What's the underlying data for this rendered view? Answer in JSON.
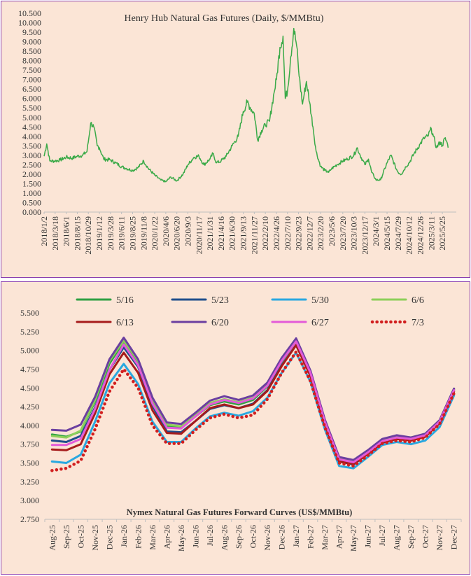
{
  "chart_data": [
    {
      "type": "line",
      "title": "Henry Hub Natural Gas Futures (Daily, $/MMBtu)",
      "xlabel": "",
      "ylabel": "",
      "ylim": [
        0,
        10.5
      ],
      "y_ticks": [
        "0.000",
        "0.500",
        "1.000",
        "1.500",
        "2.000",
        "2.500",
        "3.000",
        "3.500",
        "4.000",
        "4.500",
        "5.000",
        "5.500",
        "6.000",
        "6.500",
        "7.000",
        "7.500",
        "8.000",
        "8.500",
        "9.000",
        "9.500",
        "10.000",
        "10.500"
      ],
      "x_tick_labels": [
        "2018/1/2",
        "2018/3/18",
        "2018/6/1",
        "2018/8/15",
        "2018/10/29",
        "2019/1/12",
        "2019/3/28",
        "2019/6/11",
        "2019/8/25",
        "2019/11/8",
        "2020/1/22",
        "2020/4/6",
        "2020/6/20",
        "2020/9/3",
        "2020/11/17",
        "2021/1/31",
        "2021/4/16",
        "2021/6/30",
        "2021/9/13",
        "2021/11/27",
        "2022/2/10",
        "2022/4/26",
        "2022/7/10",
        "2022/9/23",
        "2022/12/7",
        "2023/2/20",
        "2023/5/6",
        "2023/7/20",
        "2023/10/3",
        "2023/12/17",
        "2024/3/1",
        "2024/5/15",
        "2024/7/29",
        "2024/10/12",
        "2024/12/26",
        "2025/3/11",
        "2025/5/25"
      ],
      "series": [
        {
          "color": "#3aaa48",
          "points": [
            [
              "2018/1/2",
              2.95
            ],
            [
              "2018/1/20",
              3.6
            ],
            [
              "2018/2/10",
              2.7
            ],
            [
              "2018/3/18",
              2.7
            ],
            [
              "2018/4/20",
              2.75
            ],
            [
              "2018/6/1",
              2.9
            ],
            [
              "2018/7/15",
              2.85
            ],
            [
              "2018/8/15",
              2.95
            ],
            [
              "2018/9/20",
              3.0
            ],
            [
              "2018/10/20",
              3.2
            ],
            [
              "2018/11/14",
              4.7
            ],
            [
              "2018/12/5",
              4.5
            ],
            [
              "2018/12/28",
              3.5
            ],
            [
              "2019/1/12",
              3.4
            ],
            [
              "2019/2/10",
              2.8
            ],
            [
              "2019/3/28",
              2.75
            ],
            [
              "2019/5/1",
              2.6
            ],
            [
              "2019/6/11",
              2.4
            ],
            [
              "2019/7/15",
              2.3
            ],
            [
              "2019/8/25",
              2.2
            ],
            [
              "2019/10/1",
              2.35
            ],
            [
              "2019/11/8",
              2.7
            ],
            [
              "2019/12/10",
              2.3
            ],
            [
              "2020/1/22",
              1.95
            ],
            [
              "2020/3/1",
              1.7
            ],
            [
              "2020/4/6",
              1.6
            ],
            [
              "2020/5/10",
              1.85
            ],
            [
              "2020/6/20",
              1.65
            ],
            [
              "2020/8/1",
              2.0
            ],
            [
              "2020/9/3",
              2.5
            ],
            [
              "2020/10/15",
              2.9
            ],
            [
              "2020/11/17",
              2.95
            ],
            [
              "2020/12/20",
              2.5
            ],
            [
              "2021/1/31",
              2.8
            ],
            [
              "2021/2/20",
              3.1
            ],
            [
              "2021/3/15",
              2.6
            ],
            [
              "2021/4/16",
              2.7
            ],
            [
              "2021/5/20",
              2.95
            ],
            [
              "2021/6/30",
              3.5
            ],
            [
              "2021/8/10",
              4.0
            ],
            [
              "2021/9/13",
              5.3
            ],
            [
              "2021/10/10",
              5.8
            ],
            [
              "2021/11/1",
              5.5
            ],
            [
              "2021/11/27",
              5.2
            ],
            [
              "2021/12/20",
              3.8
            ],
            [
              "2022/1/15",
              4.3
            ],
            [
              "2022/2/10",
              4.6
            ],
            [
              "2022/3/10",
              4.8
            ],
            [
              "2022/4/10",
              6.3
            ],
            [
              "2022/4/26",
              7.0
            ],
            [
              "2022/5/20",
              8.7
            ],
            [
              "2022/6/10",
              9.3
            ],
            [
              "2022/6/25",
              6.0
            ],
            [
              "2022/7/10",
              6.4
            ],
            [
              "2022/8/1",
              8.2
            ],
            [
              "2022/8/22",
              9.7
            ],
            [
              "2022/9/10",
              8.8
            ],
            [
              "2022/9/23",
              7.5
            ],
            [
              "2022/10/20",
              5.7
            ],
            [
              "2022/11/15",
              6.9
            ],
            [
              "2022/12/7",
              5.8
            ],
            [
              "2022/12/30",
              4.5
            ],
            [
              "2023/1/20",
              3.2
            ],
            [
              "2023/2/20",
              2.4
            ],
            [
              "2023/3/20",
              2.2
            ],
            [
              "2023/4/15",
              2.1
            ],
            [
              "2023/5/6",
              2.3
            ],
            [
              "2023/6/10",
              2.5
            ],
            [
              "2023/7/20",
              2.7
            ],
            [
              "2023/8/20",
              2.8
            ],
            [
              "2023/10/3",
              3.0
            ],
            [
              "2023/10/25",
              3.4
            ],
            [
              "2023/11/15",
              3.0
            ],
            [
              "2023/12/17",
              2.5
            ],
            [
              "2024/1/10",
              2.8
            ],
            [
              "2024/2/1",
              2.1
            ],
            [
              "2024/3/1",
              1.7
            ],
            [
              "2024/4/1",
              1.7
            ],
            [
              "2024/5/15",
              2.6
            ],
            [
              "2024/6/10",
              3.0
            ],
            [
              "2024/7/10",
              2.4
            ],
            [
              "2024/7/29",
              2.1
            ],
            [
              "2024/8/20",
              2.0
            ],
            [
              "2024/9/20",
              2.4
            ],
            [
              "2024/10/12",
              2.6
            ],
            [
              "2024/11/15",
              3.1
            ],
            [
              "2024/12/26",
              3.6
            ],
            [
              "2025/1/20",
              3.9
            ],
            [
              "2025/2/15",
              4.0
            ],
            [
              "2025/3/11",
              4.4
            ],
            [
              "2025/3/25",
              4.0
            ],
            [
              "2025/4/15",
              3.4
            ],
            [
              "2025/5/10",
              3.7
            ],
            [
              "2025/5/25",
              3.5
            ],
            [
              "2025/6/10",
              3.9
            ],
            [
              "2025/6/25",
              3.7
            ],
            [
              "2025/7/3",
              3.4
            ]
          ]
        }
      ]
    },
    {
      "type": "line",
      "title": "Nymex  Natural  Gas Futures Forward  Curves (US$/MMBtu)",
      "xlabel": "",
      "ylabel": "",
      "ylim": [
        2.75,
        5.5
      ],
      "y_ticks": [
        "2.750",
        "3.000",
        "3.250",
        "3.500",
        "3.750",
        "4.000",
        "4.250",
        "4.500",
        "4.750",
        "5.000",
        "5.250",
        "5.500"
      ],
      "categories": [
        "Aug-25",
        "Sep-25",
        "Oct-25",
        "Nov-25",
        "Dec-25",
        "Jan-26",
        "Feb-26",
        "Mar-26",
        "Apr-26",
        "May-26",
        "Jun-26",
        "Jul-26",
        "Aug-26",
        "Sep-26",
        "Oct-26",
        "Nov-26",
        "Dec-26",
        "Jan-27",
        "Feb-27",
        "Mar-27",
        "Apr-27",
        "May-27",
        "Jun-27",
        "Jul-27",
        "Aug-27",
        "Sep-27",
        "Oct-27",
        "Nov-27",
        "Dec-27"
      ],
      "legend_position": "top",
      "series": [
        {
          "name": "5/16",
          "color": "#2ea043",
          "dash": false,
          "values": [
            3.88,
            3.85,
            3.92,
            4.32,
            4.82,
            5.12,
            4.85,
            4.33,
            3.99,
            3.97,
            4.12,
            4.27,
            4.32,
            4.28,
            4.34,
            4.52,
            4.85,
            5.12,
            4.7,
            4.05,
            3.56,
            3.52,
            3.65,
            3.8,
            3.85,
            3.82,
            3.88,
            4.06,
            4.48
          ]
        },
        {
          "name": "5/23",
          "color": "#1f4e8c",
          "dash": false,
          "values": [
            3.8,
            3.78,
            3.86,
            4.24,
            4.74,
            5.04,
            4.78,
            4.26,
            3.92,
            3.91,
            4.06,
            4.22,
            4.27,
            4.23,
            4.29,
            4.47,
            4.8,
            5.07,
            4.66,
            4.01,
            3.52,
            3.48,
            3.62,
            3.77,
            3.82,
            3.8,
            3.85,
            4.04,
            4.47
          ]
        },
        {
          "name": "5/30",
          "color": "#2aa8e0",
          "dash": false,
          "values": [
            3.52,
            3.5,
            3.61,
            4.05,
            4.56,
            4.82,
            4.55,
            4.05,
            3.78,
            3.78,
            3.96,
            4.12,
            4.17,
            4.13,
            4.19,
            4.37,
            4.7,
            4.97,
            4.58,
            3.95,
            3.46,
            3.43,
            3.58,
            3.74,
            3.78,
            3.75,
            3.8,
            3.98,
            4.4
          ]
        },
        {
          "name": "6/6",
          "color": "#8dcf5a",
          "dash": false,
          "values": [
            3.86,
            3.84,
            3.93,
            4.34,
            4.86,
            5.13,
            4.86,
            4.35,
            4.01,
            3.99,
            4.15,
            4.3,
            4.35,
            4.31,
            4.37,
            4.55,
            4.88,
            5.14,
            4.72,
            4.07,
            3.57,
            3.53,
            3.66,
            3.81,
            3.86,
            3.84,
            3.89,
            4.07,
            4.49
          ]
        },
        {
          "name": "6/13",
          "color": "#a61b1b",
          "dash": false,
          "values": [
            3.68,
            3.67,
            3.75,
            4.16,
            4.68,
            4.97,
            4.7,
            4.2,
            3.9,
            3.89,
            4.06,
            4.23,
            4.28,
            4.23,
            4.28,
            4.46,
            4.79,
            5.07,
            4.66,
            4.01,
            3.52,
            3.49,
            3.62,
            3.77,
            3.82,
            3.8,
            3.85,
            4.03,
            4.45
          ]
        },
        {
          "name": "6/20",
          "color": "#6b3fa0",
          "dash": false,
          "values": [
            3.94,
            3.93,
            4.01,
            4.38,
            4.88,
            5.17,
            4.88,
            4.37,
            4.04,
            4.02,
            4.17,
            4.33,
            4.39,
            4.34,
            4.4,
            4.57,
            4.9,
            5.16,
            4.73,
            4.08,
            3.58,
            3.54,
            3.67,
            3.82,
            3.87,
            3.84,
            3.89,
            4.07,
            4.49
          ]
        },
        {
          "name": "6/27",
          "color": "#e35bd8",
          "dash": false,
          "values": [
            3.74,
            3.74,
            3.82,
            4.22,
            4.74,
            5.08,
            4.8,
            4.29,
            3.97,
            3.96,
            4.12,
            4.28,
            4.34,
            4.3,
            4.36,
            4.53,
            4.86,
            5.12,
            4.7,
            4.05,
            3.55,
            3.51,
            3.64,
            3.79,
            3.84,
            3.82,
            3.87,
            4.05,
            4.47
          ]
        },
        {
          "name": "7/3",
          "color": "#d11f1f",
          "dash": true,
          "values": [
            3.4,
            3.43,
            3.53,
            3.95,
            4.45,
            4.75,
            4.5,
            4.0,
            3.76,
            3.76,
            3.94,
            4.1,
            4.15,
            4.1,
            4.14,
            4.35,
            4.7,
            4.98,
            4.59,
            3.98,
            3.5,
            3.46,
            3.6,
            3.76,
            3.8,
            3.78,
            3.84,
            4.02,
            4.43
          ]
        }
      ]
    }
  ]
}
